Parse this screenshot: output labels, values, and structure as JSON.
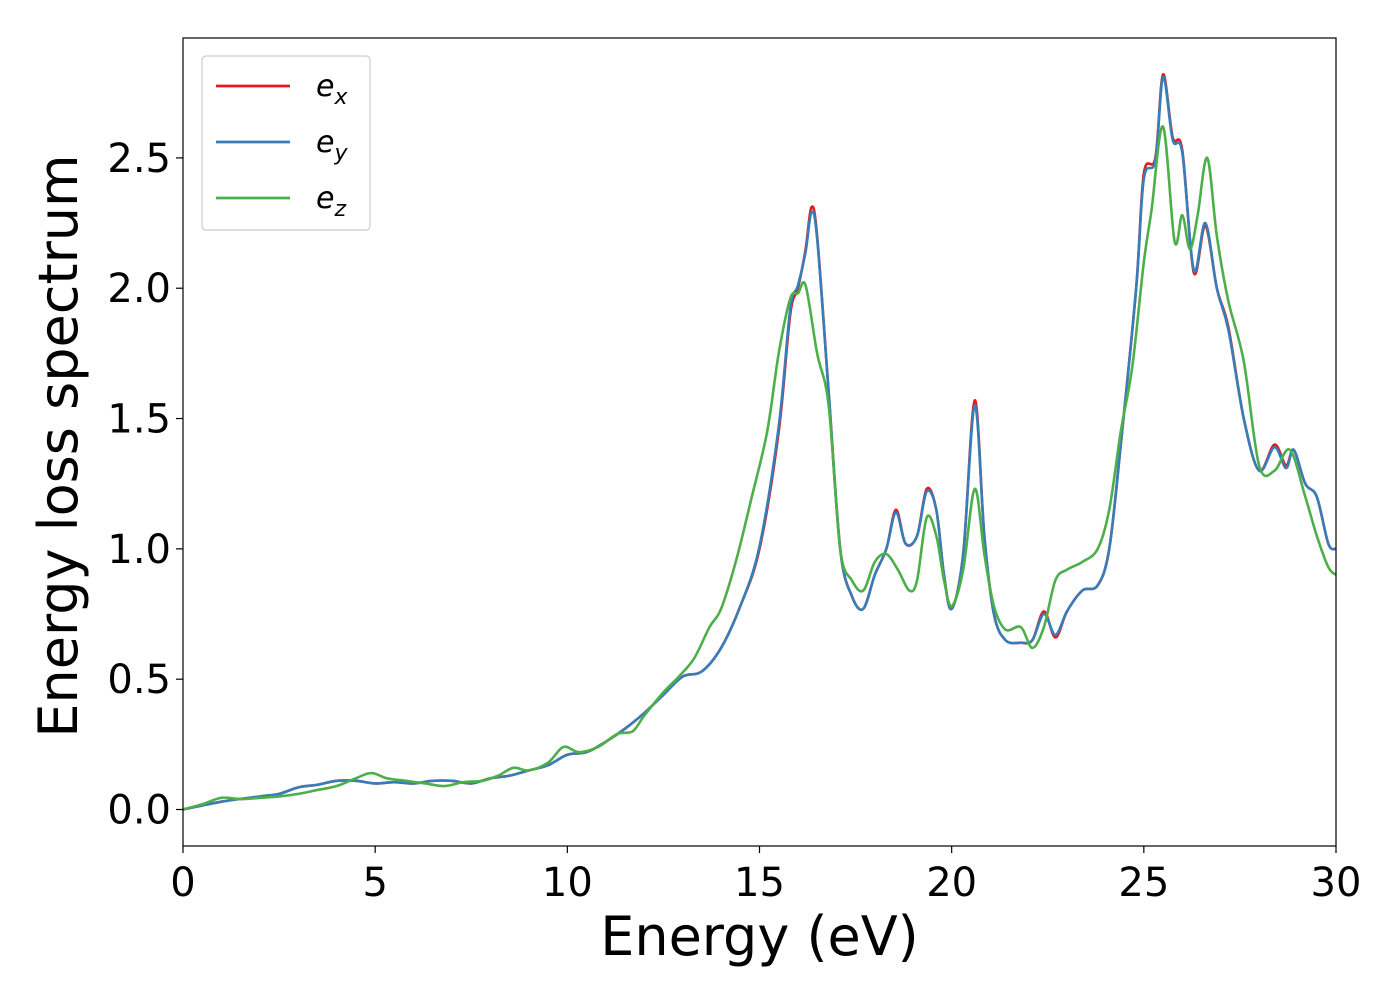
{
  "chart_data": {
    "type": "line",
    "title": "",
    "xlabel": "Energy (eV)",
    "ylabel": "Energy loss spectrum",
    "xlim": [
      0,
      30
    ],
    "ylim": [
      -0.14,
      2.96
    ],
    "xticks": [
      0,
      5,
      10,
      15,
      20,
      25,
      30
    ],
    "xtick_labels": [
      "0",
      "5",
      "10",
      "15",
      "20",
      "25",
      "30"
    ],
    "yticks": [
      0.0,
      0.5,
      1.0,
      1.5,
      2.0,
      2.5
    ],
    "ytick_labels": [
      "0.0",
      "0.5",
      "1.0",
      "1.5",
      "2.0",
      "2.5"
    ],
    "grid": false,
    "legend_position": "top-left",
    "series": [
      {
        "name": "ex",
        "label_base": "e",
        "label_sub": "x",
        "color": "#e41a1c",
        "points": [
          [
            0,
            0
          ],
          [
            1,
            0.03
          ],
          [
            2,
            0.05
          ],
          [
            2.5,
            0.06
          ],
          [
            3,
            0.085
          ],
          [
            3.5,
            0.095
          ],
          [
            4,
            0.11
          ],
          [
            4.5,
            0.11
          ],
          [
            5,
            0.1
          ],
          [
            5.5,
            0.105
          ],
          [
            6,
            0.1
          ],
          [
            6.5,
            0.11
          ],
          [
            7,
            0.11
          ],
          [
            7.5,
            0.1
          ],
          [
            8,
            0.12
          ],
          [
            8.5,
            0.13
          ],
          [
            9,
            0.15
          ],
          [
            9.5,
            0.17
          ],
          [
            10,
            0.21
          ],
          [
            10.5,
            0.22
          ],
          [
            11,
            0.26
          ],
          [
            11.5,
            0.31
          ],
          [
            12,
            0.37
          ],
          [
            12.5,
            0.44
          ],
          [
            13,
            0.51
          ],
          [
            13.5,
            0.53
          ],
          [
            14,
            0.62
          ],
          [
            14.5,
            0.78
          ],
          [
            15,
            1.0
          ],
          [
            15.5,
            1.45
          ],
          [
            15.8,
            1.9
          ],
          [
            16,
            2.0
          ],
          [
            16.2,
            2.15
          ],
          [
            16.35,
            2.31
          ],
          [
            16.5,
            2.2
          ],
          [
            16.8,
            1.6
          ],
          [
            17.1,
            1.0
          ],
          [
            17.4,
            0.82
          ],
          [
            17.7,
            0.77
          ],
          [
            18,
            0.9
          ],
          [
            18.3,
            1.0
          ],
          [
            18.55,
            1.15
          ],
          [
            18.8,
            1.02
          ],
          [
            19.1,
            1.05
          ],
          [
            19.35,
            1.23
          ],
          [
            19.6,
            1.15
          ],
          [
            19.8,
            0.9
          ],
          [
            20,
            0.77
          ],
          [
            20.3,
            0.98
          ],
          [
            20.6,
            1.57
          ],
          [
            20.85,
            1.05
          ],
          [
            21.1,
            0.75
          ],
          [
            21.4,
            0.65
          ],
          [
            21.8,
            0.64
          ],
          [
            22.1,
            0.65
          ],
          [
            22.4,
            0.76
          ],
          [
            22.7,
            0.66
          ],
          [
            23,
            0.76
          ],
          [
            23.4,
            0.84
          ],
          [
            23.8,
            0.86
          ],
          [
            24.1,
            1.0
          ],
          [
            24.4,
            1.4
          ],
          [
            24.8,
            2.0
          ],
          [
            25.0,
            2.44
          ],
          [
            25.3,
            2.5
          ],
          [
            25.5,
            2.82
          ],
          [
            25.75,
            2.58
          ],
          [
            26.0,
            2.53
          ],
          [
            26.3,
            2.06
          ],
          [
            26.6,
            2.24
          ],
          [
            26.9,
            2.0
          ],
          [
            27.2,
            1.85
          ],
          [
            27.6,
            1.5
          ],
          [
            28.0,
            1.3
          ],
          [
            28.4,
            1.4
          ],
          [
            28.7,
            1.32
          ],
          [
            28.9,
            1.38
          ],
          [
            29.2,
            1.25
          ],
          [
            29.5,
            1.2
          ],
          [
            29.8,
            1.02
          ],
          [
            30,
            1.0
          ]
        ]
      },
      {
        "name": "ey",
        "label_base": "e",
        "label_sub": "y",
        "color": "#377eb8",
        "points": [
          [
            0,
            0
          ],
          [
            1,
            0.03
          ],
          [
            2,
            0.05
          ],
          [
            2.5,
            0.06
          ],
          [
            3,
            0.085
          ],
          [
            3.5,
            0.095
          ],
          [
            4,
            0.11
          ],
          [
            4.5,
            0.11
          ],
          [
            5,
            0.1
          ],
          [
            5.5,
            0.105
          ],
          [
            6,
            0.1
          ],
          [
            6.5,
            0.11
          ],
          [
            7,
            0.11
          ],
          [
            7.5,
            0.1
          ],
          [
            8,
            0.12
          ],
          [
            8.5,
            0.13
          ],
          [
            9,
            0.15
          ],
          [
            9.5,
            0.17
          ],
          [
            10,
            0.21
          ],
          [
            10.5,
            0.22
          ],
          [
            11,
            0.26
          ],
          [
            11.5,
            0.31
          ],
          [
            12,
            0.37
          ],
          [
            12.5,
            0.44
          ],
          [
            13,
            0.51
          ],
          [
            13.5,
            0.53
          ],
          [
            14,
            0.62
          ],
          [
            14.5,
            0.78
          ],
          [
            15,
            1.01
          ],
          [
            15.5,
            1.47
          ],
          [
            15.8,
            1.92
          ],
          [
            16,
            2.01
          ],
          [
            16.2,
            2.14
          ],
          [
            16.35,
            2.29
          ],
          [
            16.5,
            2.19
          ],
          [
            16.8,
            1.6
          ],
          [
            17.1,
            1.0
          ],
          [
            17.4,
            0.82
          ],
          [
            17.7,
            0.77
          ],
          [
            18,
            0.9
          ],
          [
            18.3,
            1.0
          ],
          [
            18.55,
            1.14
          ],
          [
            18.8,
            1.02
          ],
          [
            19.1,
            1.05
          ],
          [
            19.35,
            1.22
          ],
          [
            19.6,
            1.15
          ],
          [
            19.8,
            0.9
          ],
          [
            20,
            0.77
          ],
          [
            20.3,
            0.98
          ],
          [
            20.6,
            1.55
          ],
          [
            20.85,
            1.05
          ],
          [
            21.1,
            0.75
          ],
          [
            21.4,
            0.65
          ],
          [
            21.8,
            0.64
          ],
          [
            22.1,
            0.65
          ],
          [
            22.4,
            0.75
          ],
          [
            22.7,
            0.67
          ],
          [
            23,
            0.76
          ],
          [
            23.4,
            0.84
          ],
          [
            23.8,
            0.86
          ],
          [
            24.1,
            1.0
          ],
          [
            24.4,
            1.4
          ],
          [
            24.8,
            2.0
          ],
          [
            25.0,
            2.42
          ],
          [
            25.3,
            2.49
          ],
          [
            25.5,
            2.81
          ],
          [
            25.75,
            2.57
          ],
          [
            26.0,
            2.52
          ],
          [
            26.3,
            2.07
          ],
          [
            26.6,
            2.25
          ],
          [
            26.9,
            2.0
          ],
          [
            27.2,
            1.84
          ],
          [
            27.6,
            1.5
          ],
          [
            28.0,
            1.3
          ],
          [
            28.4,
            1.39
          ],
          [
            28.7,
            1.31
          ],
          [
            28.9,
            1.38
          ],
          [
            29.2,
            1.25
          ],
          [
            29.5,
            1.2
          ],
          [
            29.8,
            1.02
          ],
          [
            30,
            1.0
          ]
        ]
      },
      {
        "name": "ez",
        "label_base": "e",
        "label_sub": "z",
        "color": "#4daf4a",
        "points": [
          [
            0,
            0
          ],
          [
            0.5,
            0.02
          ],
          [
            1,
            0.045
          ],
          [
            1.5,
            0.04
          ],
          [
            2,
            0.045
          ],
          [
            2.5,
            0.05
          ],
          [
            3,
            0.06
          ],
          [
            3.5,
            0.075
          ],
          [
            4,
            0.09
          ],
          [
            4.5,
            0.12
          ],
          [
            4.9,
            0.14
          ],
          [
            5.3,
            0.12
          ],
          [
            5.8,
            0.11
          ],
          [
            6.3,
            0.1
          ],
          [
            6.8,
            0.09
          ],
          [
            7.3,
            0.105
          ],
          [
            7.8,
            0.11
          ],
          [
            8.2,
            0.13
          ],
          [
            8.6,
            0.16
          ],
          [
            9,
            0.15
          ],
          [
            9.5,
            0.18
          ],
          [
            9.9,
            0.24
          ],
          [
            10.3,
            0.22
          ],
          [
            10.8,
            0.24
          ],
          [
            11.3,
            0.29
          ],
          [
            11.7,
            0.3
          ],
          [
            12,
            0.36
          ],
          [
            12.5,
            0.45
          ],
          [
            12.9,
            0.51
          ],
          [
            13.3,
            0.58
          ],
          [
            13.7,
            0.7
          ],
          [
            14,
            0.77
          ],
          [
            14.4,
            0.96
          ],
          [
            14.8,
            1.2
          ],
          [
            15.2,
            1.45
          ],
          [
            15.5,
            1.75
          ],
          [
            15.8,
            1.96
          ],
          [
            16,
            1.98
          ],
          [
            16.2,
            2.01
          ],
          [
            16.5,
            1.75
          ],
          [
            16.8,
            1.55
          ],
          [
            17.1,
            1.0
          ],
          [
            17.4,
            0.88
          ],
          [
            17.7,
            0.84
          ],
          [
            18,
            0.95
          ],
          [
            18.3,
            0.98
          ],
          [
            18.6,
            0.92
          ],
          [
            18.9,
            0.84
          ],
          [
            19.1,
            0.88
          ],
          [
            19.35,
            1.12
          ],
          [
            19.6,
            1.05
          ],
          [
            19.8,
            0.88
          ],
          [
            20,
            0.78
          ],
          [
            20.3,
            0.92
          ],
          [
            20.6,
            1.23
          ],
          [
            20.85,
            0.98
          ],
          [
            21.1,
            0.78
          ],
          [
            21.4,
            0.69
          ],
          [
            21.8,
            0.7
          ],
          [
            22.1,
            0.62
          ],
          [
            22.4,
            0.7
          ],
          [
            22.7,
            0.88
          ],
          [
            23,
            0.92
          ],
          [
            23.4,
            0.95
          ],
          [
            23.8,
            1.0
          ],
          [
            24.1,
            1.15
          ],
          [
            24.4,
            1.45
          ],
          [
            24.7,
            1.7
          ],
          [
            25.0,
            2.1
          ],
          [
            25.2,
            2.3
          ],
          [
            25.5,
            2.62
          ],
          [
            25.8,
            2.18
          ],
          [
            26.0,
            2.28
          ],
          [
            26.2,
            2.15
          ],
          [
            26.4,
            2.28
          ],
          [
            26.65,
            2.5
          ],
          [
            26.9,
            2.2
          ],
          [
            27.2,
            1.95
          ],
          [
            27.6,
            1.72
          ],
          [
            28.0,
            1.32
          ],
          [
            28.4,
            1.3
          ],
          [
            28.8,
            1.38
          ],
          [
            29.2,
            1.2
          ],
          [
            29.5,
            1.05
          ],
          [
            29.8,
            0.93
          ],
          [
            30,
            0.9
          ]
        ]
      }
    ]
  }
}
